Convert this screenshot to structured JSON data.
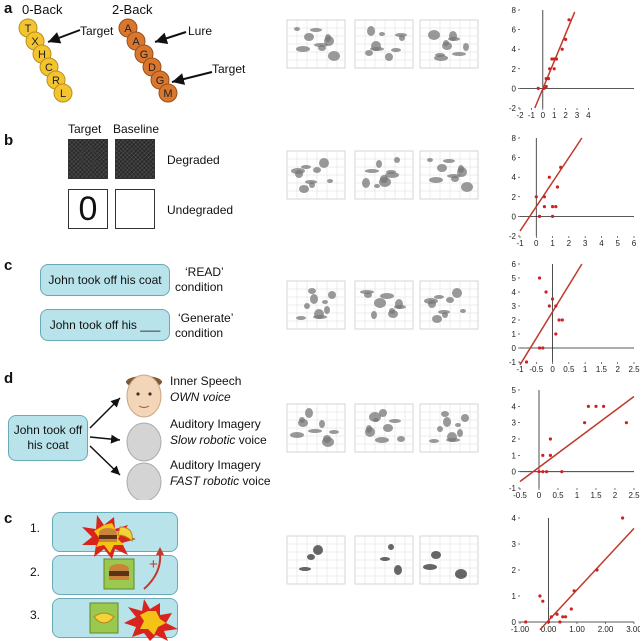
{
  "panels": [
    {
      "label": "a",
      "zero_back": {
        "title": "0-Back",
        "letters": [
          "T",
          "X",
          "H",
          "C",
          "R",
          "L"
        ],
        "arrow_label": "Target"
      },
      "two_back": {
        "title": "2-Back",
        "letters": [
          "A",
          "A",
          "G",
          "D",
          "G",
          "M"
        ],
        "lure_label": "Lure",
        "target_label": "Target"
      }
    },
    {
      "label": "b",
      "target_header": "Target",
      "baseline_header": "Baseline",
      "degraded_label": "Degraded",
      "undegraded_label": "Undegraded",
      "digit": "0"
    },
    {
      "label": "c",
      "sentence1": "John took off his coat",
      "cond1": "‘READ’",
      "cond1_suffix": "condition",
      "sentence2": "John took off his ___",
      "cond2": "‘Generate’",
      "cond2_suffix": "condition"
    },
    {
      "label": "d",
      "sentence": "John took off his coat",
      "options": [
        {
          "line1": "Inner Speech",
          "line2": "OWN voice",
          "line2_suffix": ""
        },
        {
          "line1": "Auditory Imagery",
          "line2": "Slow robotic",
          "line2_suffix": "voice"
        },
        {
          "line1": "Auditory Imagery",
          "line2": "FAST robotic",
          "line2_suffix": "voice"
        }
      ]
    },
    {
      "label": "c",
      "steps": [
        "1.",
        "2.",
        "3."
      ],
      "plus": "+"
    }
  ],
  "colors": {
    "accent": "#b9e3ea",
    "fit_line": "#c0392b",
    "point": "#cc2222",
    "yellow": "#f4c430",
    "orange": "#d9772e"
  },
  "chart_data": [
    {
      "type": "scatter",
      "xlim": [
        -2,
        8
      ],
      "ylim": [
        -2,
        8
      ],
      "xticks": [
        -2,
        -1,
        0,
        1,
        2,
        3,
        4
      ],
      "yticks": [
        -2,
        0,
        2,
        4,
        6,
        8
      ],
      "points": [
        [
          -0.4,
          0
        ],
        [
          0.1,
          0
        ],
        [
          0.3,
          0.2
        ],
        [
          0.3,
          1
        ],
        [
          0.5,
          1
        ],
        [
          0.6,
          2
        ],
        [
          0.8,
          3
        ],
        [
          1,
          3
        ],
        [
          1.2,
          3
        ],
        [
          1,
          2
        ],
        [
          1.7,
          4
        ],
        [
          2,
          5
        ],
        [
          2.3,
          7
        ]
      ],
      "line": [
        [
          -0.7,
          -2
        ],
        [
          2.8,
          7.8
        ]
      ]
    },
    {
      "type": "scatter",
      "xlim": [
        -1,
        6
      ],
      "ylim": [
        -2,
        8
      ],
      "xticks": [
        -1,
        0,
        1,
        2,
        3,
        4,
        5,
        6
      ],
      "yticks": [
        -2,
        0,
        2,
        4,
        6,
        8
      ],
      "points": [
        [
          0,
          2
        ],
        [
          0.2,
          0
        ],
        [
          0.5,
          1
        ],
        [
          0.5,
          2
        ],
        [
          1,
          0
        ],
        [
          1,
          1
        ],
        [
          1.2,
          1
        ],
        [
          1.3,
          3
        ],
        [
          1.5,
          5
        ],
        [
          0.8,
          4
        ]
      ],
      "line": [
        [
          -1,
          -1.5
        ],
        [
          2.8,
          8
        ]
      ]
    },
    {
      "type": "scatter",
      "xlim": [
        -1,
        2.5
      ],
      "ylim": [
        -1,
        6
      ],
      "xticks": [
        -1,
        -0.5,
        0,
        0.5,
        1,
        1.5,
        2,
        2.5
      ],
      "yticks": [
        -1,
        0,
        1,
        2,
        3,
        4,
        5,
        6
      ],
      "points": [
        [
          -0.8,
          -1
        ],
        [
          -0.4,
          0
        ],
        [
          -0.3,
          0
        ],
        [
          -0.4,
          5
        ],
        [
          -0.2,
          4
        ],
        [
          -0.1,
          3
        ],
        [
          0,
          3.5
        ],
        [
          0.1,
          3
        ],
        [
          0.2,
          2
        ],
        [
          0.1,
          1
        ],
        [
          0.3,
          2
        ]
      ],
      "line": [
        [
          -1,
          -1.2
        ],
        [
          0.9,
          6
        ]
      ]
    },
    {
      "type": "scatter",
      "xlim": [
        -0.5,
        2.5
      ],
      "ylim": [
        -1,
        5
      ],
      "xticks": [
        -0.5,
        0,
        0.5,
        1,
        1.5,
        2,
        2.5
      ],
      "yticks": [
        -1,
        0,
        1,
        2,
        3,
        4,
        5
      ],
      "points": [
        [
          0,
          0
        ],
        [
          0.1,
          0
        ],
        [
          0.2,
          0
        ],
        [
          0.1,
          1
        ],
        [
          0.3,
          1
        ],
        [
          0.3,
          2
        ],
        [
          0.6,
          0
        ],
        [
          1.2,
          3
        ],
        [
          1.5,
          4
        ],
        [
          1.7,
          4
        ],
        [
          1.3,
          4
        ],
        [
          2.3,
          3
        ]
      ],
      "line": [
        [
          -0.5,
          -0.6
        ],
        [
          2.5,
          4.6
        ]
      ]
    },
    {
      "type": "scatter",
      "xlim": [
        -1,
        3
      ],
      "ylim": [
        0,
        4
      ],
      "xticks": [
        -1,
        0,
        1,
        2,
        3
      ],
      "xtick_labels": [
        "-1.00",
        "0.00",
        "1.00",
        "2.00",
        "3.00"
      ],
      "yticks": [
        0,
        1,
        2,
        3,
        4
      ],
      "points": [
        [
          -0.8,
          0
        ],
        [
          -0.3,
          1
        ],
        [
          -0.2,
          0.8
        ],
        [
          0,
          0
        ],
        [
          0.1,
          0.2
        ],
        [
          0.3,
          0.3
        ],
        [
          0.5,
          0.2
        ],
        [
          0.8,
          0.5
        ],
        [
          0.9,
          1.2
        ],
        [
          0.6,
          0.2
        ],
        [
          0.4,
          0
        ],
        [
          1.7,
          2
        ],
        [
          2.6,
          4
        ]
      ],
      "line": [
        [
          -0.3,
          -0.3
        ],
        [
          3,
          3.6
        ]
      ]
    }
  ]
}
